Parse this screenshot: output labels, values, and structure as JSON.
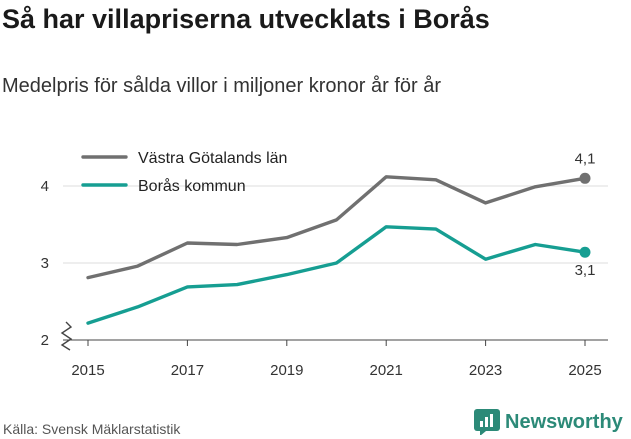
{
  "header": {
    "title": "Så har villapriserna utvecklats i Borås",
    "subtitle": "Medelpris för sålda villor i miljoner kronor år för år"
  },
  "footer": {
    "source": "Källa: Svensk Mäklarstatistik",
    "brand": "Newsworthy"
  },
  "chart_data": {
    "type": "line",
    "title": "Så har villapriserna utvecklats i Borås",
    "subtitle": "Medelpris för sålda villor i miljoner kronor år för år",
    "xlabel": "",
    "ylabel": "",
    "x": [
      2015,
      2016,
      2017,
      2018,
      2019,
      2020,
      2021,
      2022,
      2023,
      2024,
      2025
    ],
    "x_ticks": [
      2015,
      2017,
      2019,
      2021,
      2023,
      2025
    ],
    "y_ticks": [
      2,
      3,
      4
    ],
    "ylim": [
      2,
      4.25
    ],
    "axis_break": true,
    "grid": true,
    "legend_position": "top-left",
    "series": [
      {
        "name": "Västra Götalands län",
        "color": "#707070",
        "values": [
          2.81,
          2.96,
          3.26,
          3.24,
          3.33,
          3.56,
          4.12,
          4.08,
          3.78,
          3.99,
          4.1
        ],
        "end_label": "4,1"
      },
      {
        "name": "Borås kommun",
        "color": "#169e92",
        "values": [
          2.22,
          2.43,
          2.69,
          2.72,
          2.85,
          3.0,
          3.47,
          3.44,
          3.05,
          3.24,
          3.14
        ],
        "end_label": "3,1"
      }
    ]
  }
}
